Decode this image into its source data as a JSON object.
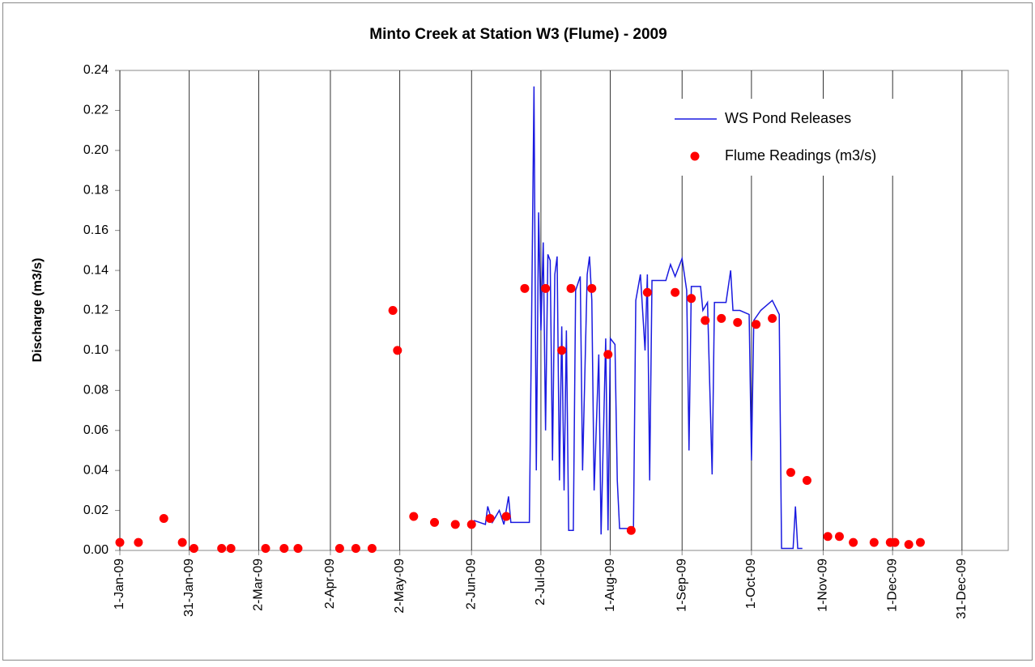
{
  "chart_data": {
    "type": "line-scatter",
    "title": "Minto Creek at Station W3 (Flume) - 2009",
    "y_label": "Discharge (m3/s)",
    "xlim": [
      "2009-01-01",
      "2010-01-20"
    ],
    "xticks": [
      {
        "value": "2009-01-01",
        "label": "1-Jan-09"
      },
      {
        "value": "2009-01-31",
        "label": "31-Jan-09"
      },
      {
        "value": "2009-03-02",
        "label": "2-Mar-09"
      },
      {
        "value": "2009-04-02",
        "label": "2-Apr-09"
      },
      {
        "value": "2009-05-02",
        "label": "2-May-09"
      },
      {
        "value": "2009-06-02",
        "label": "2-Jun-09"
      },
      {
        "value": "2009-07-02",
        "label": "2-Jul-09"
      },
      {
        "value": "2009-08-01",
        "label": "1-Aug-09"
      },
      {
        "value": "2009-09-01",
        "label": "1-Sep-09"
      },
      {
        "value": "2009-10-01",
        "label": "1-Oct-09"
      },
      {
        "value": "2009-11-01",
        "label": "1-Nov-09"
      },
      {
        "value": "2009-12-01",
        "label": "1-Dec-09"
      },
      {
        "value": "2009-12-31",
        "label": "31-Dec-09"
      }
    ],
    "ylim": [
      0,
      0.24
    ],
    "yticks": [
      {
        "value": 0,
        "label": "0.00"
      },
      0.02,
      0.04,
      0.06,
      0.08,
      {
        "value": 0.1,
        "label": "0.10"
      },
      0.12,
      0.14,
      0.16,
      0.18,
      {
        "value": 0.2,
        "label": "0.20"
      },
      0.22,
      0.24
    ],
    "grid": "x",
    "legend": "upper right",
    "series": [
      {
        "name": "WS Pond Releases",
        "kind": "line",
        "color": "#1a1ae0",
        "x": [
          "2009-06-03",
          "2009-06-08",
          "2009-06-09",
          "2009-06-11",
          "2009-06-14",
          "2009-06-16",
          "2009-06-18",
          "2009-06-19",
          "2009-06-27",
          "2009-06-28",
          "2009-06-29",
          "2009-06-30",
          "2009-07-01",
          "2009-07-02",
          "2009-07-03",
          "2009-07-04",
          "2009-07-05",
          "2009-07-06",
          "2009-07-07",
          "2009-07-08",
          "2009-07-09",
          "2009-07-10",
          "2009-07-11",
          "2009-07-12",
          "2009-07-13",
          "2009-07-14",
          "2009-07-16",
          "2009-07-17",
          "2009-07-19",
          "2009-07-20",
          "2009-07-22",
          "2009-07-23",
          "2009-07-24",
          "2009-07-25",
          "2009-07-27",
          "2009-07-28",
          "2009-07-30",
          "2009-07-31",
          "2009-08-01",
          "2009-08-03",
          "2009-08-04",
          "2009-08-05",
          "2009-08-11",
          "2009-08-12",
          "2009-08-14",
          "2009-08-16",
          "2009-08-17",
          "2009-08-18",
          "2009-08-19",
          "2009-08-25",
          "2009-08-27",
          "2009-08-29",
          "2009-09-01",
          "2009-09-03",
          "2009-09-04",
          "2009-09-05",
          "2009-09-09",
          "2009-09-10",
          "2009-09-12",
          "2009-09-14",
          "2009-09-15",
          "2009-09-20",
          "2009-09-22",
          "2009-09-23",
          "2009-09-26",
          "2009-09-30",
          "2009-10-01",
          "2009-10-02",
          "2009-10-05",
          "2009-10-10",
          "2009-10-13",
          "2009-10-14",
          "2009-10-19",
          "2009-10-20",
          "2009-10-21",
          "2009-10-23"
        ],
        "values": [
          0.015,
          0.013,
          0.022,
          0.014,
          0.02,
          0.013,
          0.027,
          0.014,
          0.014,
          0.119,
          0.232,
          0.04,
          0.169,
          0.11,
          0.154,
          0.06,
          0.148,
          0.145,
          0.045,
          0.138,
          0.147,
          0.035,
          0.112,
          0.03,
          0.11,
          0.01,
          0.01,
          0.13,
          0.137,
          0.04,
          0.138,
          0.147,
          0.125,
          0.03,
          0.098,
          0.008,
          0.106,
          0.01,
          0.106,
          0.103,
          0.035,
          0.011,
          0.011,
          0.125,
          0.138,
          0.1,
          0.138,
          0.035,
          0.135,
          0.135,
          0.143,
          0.137,
          0.146,
          0.13,
          0.05,
          0.132,
          0.132,
          0.12,
          0.124,
          0.038,
          0.124,
          0.124,
          0.14,
          0.12,
          0.12,
          0.118,
          0.045,
          0.115,
          0.12,
          0.125,
          0.118,
          0.001,
          0.001,
          0.022,
          0.001,
          0.001
        ]
      },
      {
        "name": "Flume Readings (m3/s)",
        "kind": "scatter",
        "color": "#ff0000",
        "x": [
          "2009-01-01",
          "2009-01-09",
          "2009-01-20",
          "2009-01-28",
          "2009-02-02",
          "2009-02-14",
          "2009-02-18",
          "2009-03-05",
          "2009-03-13",
          "2009-03-19",
          "2009-04-06",
          "2009-04-13",
          "2009-04-20",
          "2009-04-29",
          "2009-05-01",
          "2009-05-08",
          "2009-05-17",
          "2009-05-26",
          "2009-06-02",
          "2009-06-10",
          "2009-06-17",
          "2009-06-25",
          "2009-07-04",
          "2009-07-11",
          "2009-07-15",
          "2009-07-24",
          "2009-07-31",
          "2009-08-10",
          "2009-08-17",
          "2009-08-29",
          "2009-09-05",
          "2009-09-11",
          "2009-09-18",
          "2009-09-25",
          "2009-10-03",
          "2009-10-10",
          "2009-10-18",
          "2009-10-25",
          "2009-11-03",
          "2009-11-08",
          "2009-11-14",
          "2009-11-23",
          "2009-11-30",
          "2009-12-02",
          "2009-12-08",
          "2009-12-13"
        ],
        "values": [
          0.004,
          0.004,
          0.016,
          0.004,
          0.001,
          0.001,
          0.001,
          0.001,
          0.001,
          0.001,
          0.001,
          0.001,
          0.001,
          0.12,
          0.1,
          0.017,
          0.014,
          0.013,
          0.013,
          0.016,
          0.017,
          0.131,
          0.131,
          0.1,
          0.131,
          0.131,
          0.098,
          0.01,
          0.129,
          0.129,
          0.126,
          0.115,
          0.116,
          0.114,
          0.113,
          0.116,
          0.039,
          0.035,
          0.007,
          0.007,
          0.004,
          0.004,
          0.004,
          0.004,
          0.003,
          0.004
        ]
      }
    ]
  }
}
